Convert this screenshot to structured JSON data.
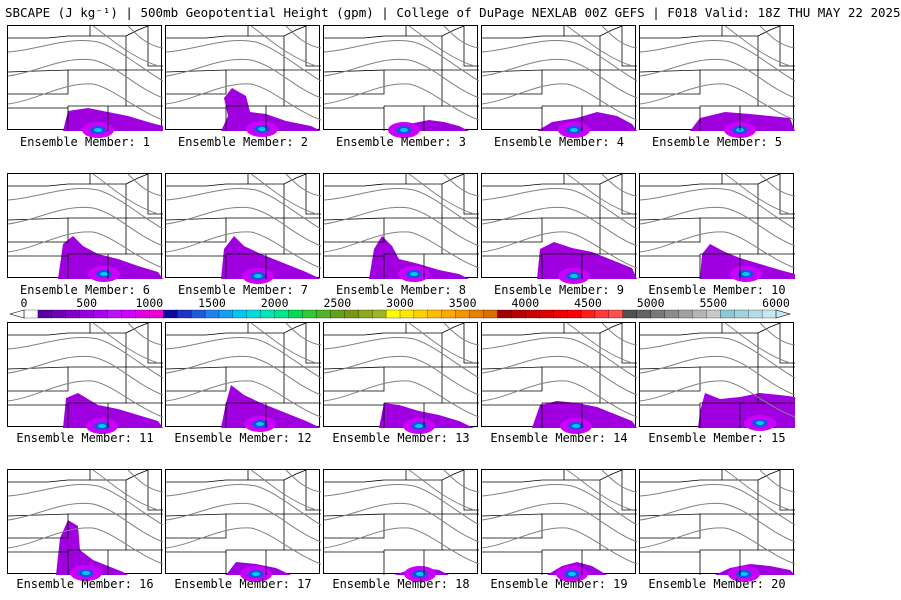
{
  "title": "SBCAPE (J kg⁻¹) | 500mb Geopotential Height (gpm) | College of DuPage NEXLAB 00Z GEFS | F018 Valid: 18Z THU MAY 22 2025",
  "members": [
    {
      "label": "Ensemble Member: 1"
    },
    {
      "label": "Ensemble Member: 2"
    },
    {
      "label": "Ensemble Member: 3"
    },
    {
      "label": "Ensemble Member: 4"
    },
    {
      "label": "Ensemble Member: 5"
    },
    {
      "label": "Ensemble Member: 6"
    },
    {
      "label": "Ensemble Member: 7"
    },
    {
      "label": "Ensemble Member: 8"
    },
    {
      "label": "Ensemble Member: 9"
    },
    {
      "label": "Ensemble Member: 10"
    },
    {
      "label": "Ensemble Member: 11"
    },
    {
      "label": "Ensemble Member: 12"
    },
    {
      "label": "Ensemble Member: 13"
    },
    {
      "label": "Ensemble Member: 14"
    },
    {
      "label": "Ensemble Member: 15"
    },
    {
      "label": "Ensemble Member: 16"
    },
    {
      "label": "Ensemble Member: 17"
    },
    {
      "label": "Ensemble Member: 18"
    },
    {
      "label": "Ensemble Member: 19"
    },
    {
      "label": "Ensemble Member: 20"
    }
  ],
  "colorbar": {
    "ticks": [
      "0",
      "500",
      "1000",
      "1500",
      "2000",
      "2500",
      "3000",
      "3500",
      "4000",
      "4500",
      "5000",
      "5500",
      "6000"
    ],
    "colors": [
      "#ffffff",
      "#5a00a0",
      "#6e00b4",
      "#8200c8",
      "#9600dc",
      "#aa00f0",
      "#be10f0",
      "#d000ff",
      "#e000e0",
      "#f000d0",
      "#0a0aa0",
      "#1e32c8",
      "#1e5adc",
      "#1e82f0",
      "#14a0f0",
      "#00c8f0",
      "#00dcdc",
      "#00e6b4",
      "#00e68c",
      "#00dc50",
      "#32c832",
      "#50b428",
      "#64a01e",
      "#789614",
      "#8caa1e",
      "#a0b428",
      "#ffff00",
      "#ffe600",
      "#ffd200",
      "#ffbe00",
      "#ffaa00",
      "#f09600",
      "#e68200",
      "#dc6e00",
      "#a00000",
      "#b40000",
      "#c80000",
      "#dc0000",
      "#f00000",
      "#ff0000",
      "#ff1e1e",
      "#ff3c3c",
      "#ff5050",
      "#505050",
      "#646464",
      "#787878",
      "#8c8c8c",
      "#a0a0a0",
      "#b4b4b4",
      "#c8c8c8",
      "#8cc8d2",
      "#a0d2dc",
      "#b4dce6",
      "#c8e6f0"
    ]
  },
  "colors": {
    "cape_purple": "#a000e0",
    "cape_magenta": "#cc00ff",
    "cape_blue": "#1e50dc",
    "cape_cyan": "#00c8f0",
    "cape_green": "#00dc50",
    "contour": "#808080",
    "border": "#000000"
  }
}
